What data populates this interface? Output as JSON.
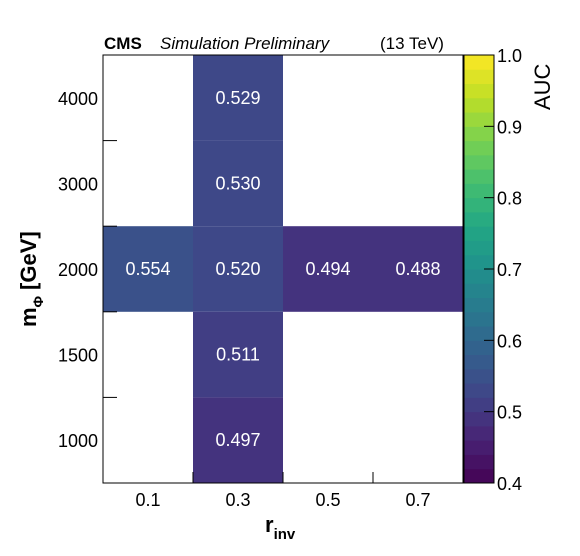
{
  "header": {
    "experiment": "CMS",
    "status": "Simulation Preliminary",
    "energy": "(13 TeV)"
  },
  "chart_data": {
    "type": "heatmap",
    "xlabel_main": "r",
    "xlabel_sub": "inv",
    "ylabel_main": "m",
    "ylabel_sub": "Φ",
    "ylabel_unit": "[GeV]",
    "x_categories": [
      "0.1",
      "0.3",
      "0.5",
      "0.7"
    ],
    "y_categories": [
      "1000",
      "1500",
      "2000",
      "3000",
      "4000"
    ],
    "cells": [
      {
        "x": "0.1",
        "y": "2000",
        "value": 0.554,
        "label": "0.554"
      },
      {
        "x": "0.3",
        "y": "2000",
        "value": 0.52,
        "label": "0.520"
      },
      {
        "x": "0.5",
        "y": "2000",
        "value": 0.494,
        "label": "0.494"
      },
      {
        "x": "0.7",
        "y": "2000",
        "value": 0.488,
        "label": "0.488"
      },
      {
        "x": "0.3",
        "y": "4000",
        "value": 0.529,
        "label": "0.529"
      },
      {
        "x": "0.3",
        "y": "3000",
        "value": 0.53,
        "label": "0.530"
      },
      {
        "x": "0.3",
        "y": "1500",
        "value": 0.511,
        "label": "0.511"
      },
      {
        "x": "0.3",
        "y": "1000",
        "value": 0.497,
        "label": "0.497"
      }
    ],
    "colorbar": {
      "title": "AUC",
      "min": 0.4,
      "max": 1.0,
      "ticks": [
        "0.4",
        "0.5",
        "0.6",
        "0.7",
        "0.8",
        "0.9",
        "1.0"
      ],
      "colormap": "viridis"
    }
  }
}
